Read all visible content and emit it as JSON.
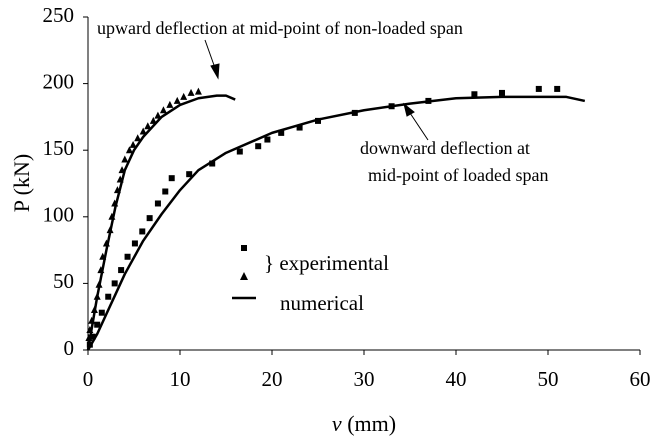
{
  "chart_data": {
    "type": "scatter",
    "y_label": "P (kN)",
    "x_label_symbol": "v",
    "x_label_unit": "(mm)",
    "xlim": [
      0,
      60
    ],
    "xticks": [
      0,
      10,
      20,
      30,
      40,
      50,
      60
    ],
    "ylim": [
      0,
      250
    ],
    "yticks": [
      0,
      50,
      100,
      150,
      200,
      250
    ],
    "grid": false,
    "annotations": [
      "upward deflection at mid-point of non-loaded span",
      "downward deflection at",
      "mid-point of loaded span"
    ],
    "legend_labels": [
      "} experimental",
      "numerical"
    ],
    "series": [
      {
        "marker": "square",
        "color": "#000000",
        "x": [
          0.2,
          0.5,
          1,
          1.5,
          2.2,
          2.9,
          3.6,
          4.3,
          5.1,
          5.9,
          6.7,
          7.6,
          8.4,
          9.1,
          11,
          13.5,
          16.5,
          18.5,
          19.5,
          21,
          23,
          25,
          29,
          33,
          37,
          42,
          45,
          49,
          51
        ],
        "values": [
          4,
          10,
          19,
          28,
          40,
          50,
          60,
          70,
          80,
          89,
          99,
          110,
          119,
          129,
          132,
          140,
          149,
          153,
          158,
          163,
          167,
          172,
          178,
          183,
          187,
          192,
          193,
          196,
          196
        ]
      },
      {
        "marker": "triangle",
        "color": "#000000",
        "x": [
          0.1,
          0.2,
          0.4,
          0.7,
          1,
          1.2,
          1.4,
          1.6,
          2,
          2.4,
          2.6,
          2.9,
          3.2,
          3.5,
          3.7,
          4,
          4.5,
          4.9,
          5.4,
          6,
          6.5,
          7.1,
          7.6,
          8.2,
          8.9,
          9.7,
          10.4,
          11.2,
          12
        ],
        "values": [
          9,
          15,
          22,
          30,
          40,
          49,
          60,
          70,
          80,
          90,
          100,
          110,
          120,
          128,
          135,
          143,
          150,
          154,
          159,
          164,
          168,
          172,
          176,
          180,
          184,
          187,
          190,
          193,
          194
        ]
      },
      {
        "marker": "line",
        "color": "#000000",
        "x": [
          0,
          0.5,
          1,
          2,
          3,
          4,
          5,
          6,
          8,
          10,
          12,
          14,
          15,
          16
        ],
        "values": [
          0,
          20,
          40,
          75,
          108,
          135,
          150,
          160,
          175,
          184,
          189,
          191,
          191,
          188
        ]
      },
      {
        "marker": "line",
        "color": "#000000",
        "x": [
          0,
          1,
          2,
          3,
          4,
          6,
          8,
          10,
          12,
          15,
          20,
          25,
          30,
          35,
          40,
          45,
          50,
          52,
          54
        ],
        "values": [
          0,
          12,
          27,
          42,
          57,
          82,
          102,
          120,
          135,
          148,
          163,
          173,
          180,
          185,
          189,
          190,
          190,
          190,
          187
        ]
      }
    ]
  }
}
